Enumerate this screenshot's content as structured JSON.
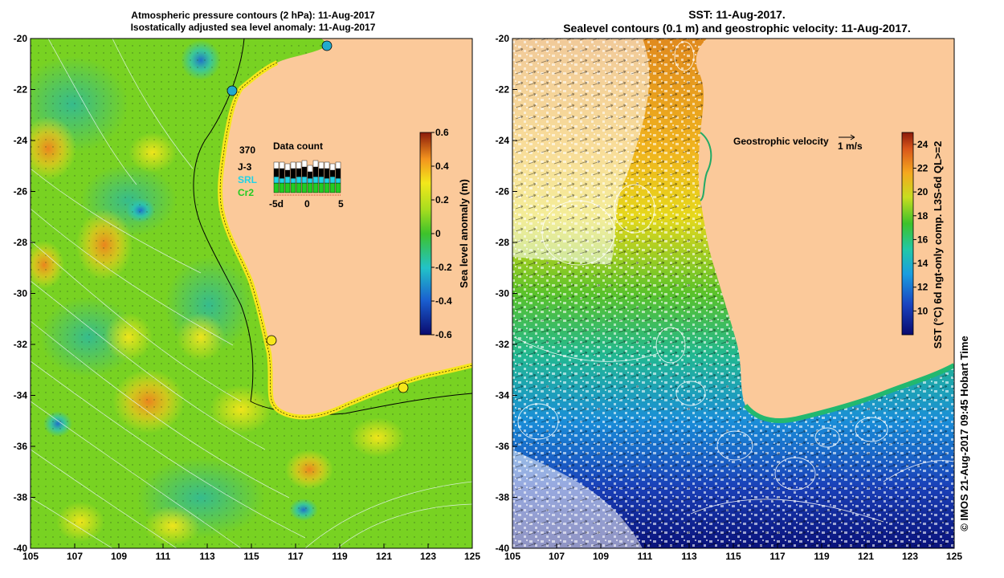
{
  "left_panel": {
    "title_line1": "Atmospheric pressure contours (2 hPa): 11-Aug-2017",
    "title_line2": "Isostatically adjusted sea level anomaly: 11-Aug-2017",
    "colorbar": {
      "label": "Sea level anomaly (m)",
      "ticks": [
        "0.6",
        "0.4",
        "0.2",
        "0",
        "-0.2",
        "-0.4",
        "-0.6"
      ],
      "range": [
        -0.6,
        0.6
      ]
    },
    "data_count": {
      "title": "Data count",
      "total": "370",
      "missions": [
        {
          "name": "J-3",
          "color": "#000000"
        },
        {
          "name": "SRL",
          "color": "#22d3e6"
        },
        {
          "name": "Cr2",
          "color": "#22cc22"
        }
      ],
      "axis_labels": [
        "-5d",
        "0",
        "5"
      ]
    }
  },
  "right_panel": {
    "title_line1": "SST: 11-Aug-2017.",
    "title_line2": "Sealevel contours (0.1 m) and geostrophic velocity: 11-Aug-2017.",
    "velocity_legend": "Geostrophic velocity",
    "velocity_scale": "1 m/s",
    "colorbar": {
      "label": "SST (°C) 6d ngt-only comp. L3S-6d QL>=2",
      "ticks": [
        "24",
        "22",
        "20",
        "18",
        "16",
        "14",
        "12",
        "10"
      ],
      "range": [
        10,
        25
      ]
    }
  },
  "axes": {
    "x_ticks": [
      "105",
      "107",
      "109",
      "111",
      "113",
      "115",
      "117",
      "119",
      "121",
      "123",
      "125"
    ],
    "y_ticks": [
      "-20",
      "-22",
      "-24",
      "-26",
      "-28",
      "-30",
      "-32",
      "-34",
      "-36",
      "-38",
      "-40"
    ],
    "lon_range": [
      105,
      125
    ],
    "lat_range": [
      -40,
      -20
    ]
  },
  "credit": "© IMOS 21-Aug-2017 09:45 Hobart Time",
  "colors": {
    "land": "#fbc99a",
    "ocean_mid": "#55cc22",
    "ocean_green": "#7ed321",
    "ocean_cyan": "#22bbaa",
    "ocean_yellow": "#f6e61a",
    "ocean_orange": "#f59a20",
    "sst_warm": "#d9661a",
    "sst_cool": "#1a3fa8"
  }
}
